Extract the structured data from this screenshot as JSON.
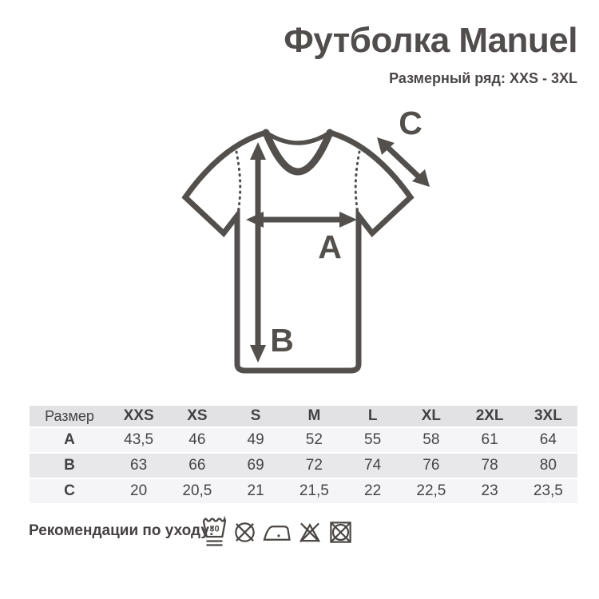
{
  "header": {
    "title": "Футболка Manuel",
    "subtitle": "Размерный ряд: XXS - 3XL"
  },
  "diagram": {
    "description": "t-shirt line drawing with measurement arrows",
    "labels": {
      "width": "A",
      "length": "B",
      "sleeve": "C"
    }
  },
  "size_table": {
    "corner_label": "Размер",
    "sizes": [
      "XXS",
      "XS",
      "S",
      "M",
      "L",
      "XL",
      "2XL",
      "3XL"
    ],
    "rows": [
      {
        "label": "A",
        "values": [
          "43,5",
          "46",
          "49",
          "52",
          "55",
          "58",
          "61",
          "64"
        ]
      },
      {
        "label": "B",
        "values": [
          "63",
          "66",
          "69",
          "72",
          "74",
          "76",
          "78",
          "80"
        ]
      },
      {
        "label": "C",
        "values": [
          "20",
          "20,5",
          "21",
          "21,5",
          "22",
          "22,5",
          "23",
          "23,5"
        ]
      }
    ]
  },
  "care": {
    "label": "Рекомендации по уходу:",
    "wash_temp": "30",
    "icons": [
      "wash-30-gentle",
      "do-not-dry-clean",
      "iron-low-temperature",
      "do-not-bleach",
      "do-not-tumble-dry"
    ]
  },
  "colors": {
    "ink": "#534f4c",
    "table_header_bg": "#e2e2e4",
    "table_alt_row_bg": "#e8e8ea",
    "table_light_row_bg": "#f5f5f7",
    "background": "#ffffff"
  }
}
